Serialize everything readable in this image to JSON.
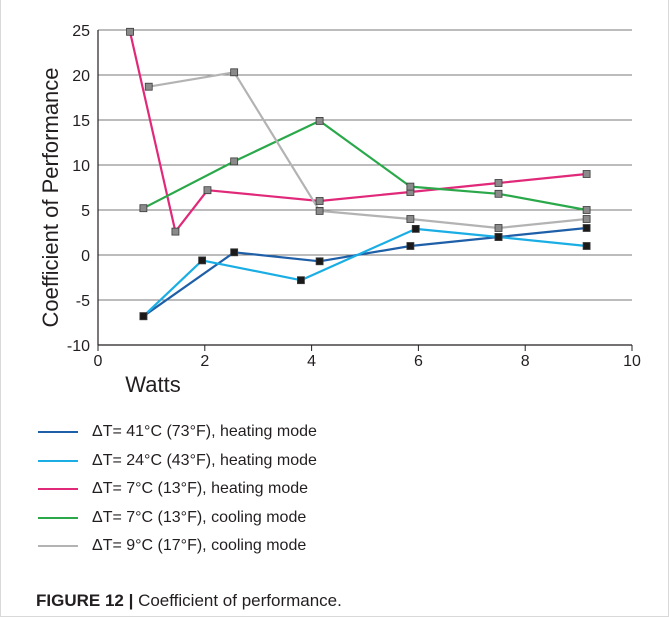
{
  "chart_data": {
    "type": "line",
    "ylabel": "Coefficient of Performance",
    "xlabel": "Watts",
    "xlim": [
      0,
      10
    ],
    "ylim": [
      -10,
      25
    ],
    "xticks": [
      "0",
      "2",
      "4",
      "6",
      "8",
      "10"
    ],
    "yticks": [
      "-10",
      "-5",
      "0",
      "5",
      "10",
      "15",
      "20",
      "25"
    ],
    "grid": "horizontal",
    "legend_position": "bottom",
    "series": [
      {
        "name": "ΔT= 41°C (73°F), heating mode",
        "color": "#1f5fa8",
        "marker_color": "#1a1a1a",
        "x": [
          0.85,
          2.55,
          4.15,
          5.85,
          7.5,
          9.15
        ],
        "y": [
          -6.8,
          0.3,
          -0.7,
          1.0,
          2.0,
          3.0
        ]
      },
      {
        "name": "ΔT= 24°C (43°F), heating mode",
        "color": "#1aaee4",
        "marker_color": "#1a1a1a",
        "x": [
          0.85,
          1.95,
          3.8,
          5.95,
          7.5,
          9.15
        ],
        "y": [
          -6.8,
          -0.6,
          -2.8,
          2.9,
          2.0,
          1.0
        ]
      },
      {
        "name": "ΔT= 7°C (13°F), heating mode",
        "color": "#e1297a",
        "marker_color": "#8a8a8a",
        "x": [
          0.6,
          1.45,
          2.05,
          4.15,
          5.85,
          7.5,
          9.15
        ],
        "y": [
          24.8,
          2.6,
          7.2,
          6.0,
          7.0,
          8.0,
          9.0
        ]
      },
      {
        "name": "ΔT= 7°C (13°F), cooling mode",
        "color": "#2aa84a",
        "marker_color": "#8a8a8a",
        "x": [
          0.85,
          2.55,
          4.15,
          5.85,
          7.5,
          9.15
        ],
        "y": [
          5.2,
          10.4,
          14.9,
          7.6,
          6.8,
          5.0
        ]
      },
      {
        "name": "ΔT= 9°C (17°F), cooling mode",
        "color": "#b3b3b3",
        "marker_color": "#8a8a8a",
        "x": [
          0.95,
          2.55,
          4.15,
          5.85,
          7.5,
          9.15
        ],
        "y": [
          18.7,
          20.3,
          4.9,
          4.0,
          3.0,
          4.0
        ]
      }
    ]
  },
  "caption": {
    "tag": "FIGURE 12 |",
    "text": " Coefficient of performance."
  }
}
